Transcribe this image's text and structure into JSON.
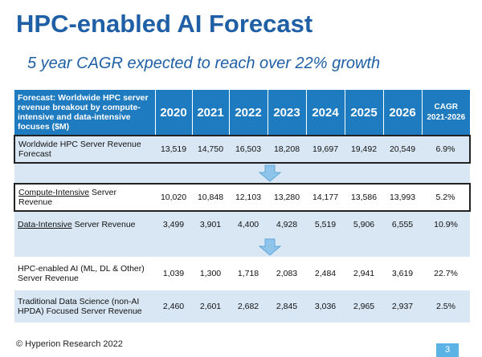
{
  "title": "HPC-enabled AI Forecast",
  "subtitle": "5 year CAGR expected to reach over 22% growth",
  "table": {
    "header_label": "Forecast: Worldwide HPC server revenue breakout by compute-intensive and data-intensive focuses ($M)",
    "years": [
      "2020",
      "2021",
      "2022",
      "2023",
      "2024",
      "2025",
      "2026"
    ],
    "cagr_label_line1": "CAGR",
    "cagr_label_line2": "2021-2026",
    "total": {
      "label": "Worldwide HPC Server Revenue Forecast",
      "values": [
        "13,519",
        "14,750",
        "16,503",
        "18,208",
        "19,697",
        "19,492",
        "20,549"
      ],
      "cagr": "6.9%"
    },
    "compute": {
      "label_underlined": "Compute-Intensive",
      "label_rest": " Server Revenue",
      "values": [
        "10,020",
        "10,848",
        "12,103",
        "13,280",
        "14,177",
        "13,586",
        "13,993"
      ],
      "cagr": "5.2%"
    },
    "data_int": {
      "label_underlined": "Data-Intensive",
      "label_rest": " Server Revenue",
      "values": [
        "3,499",
        "3,901",
        "4,400",
        "4,928",
        "5,519",
        "5,906",
        "6,555"
      ],
      "cagr": "10.9%"
    },
    "ai": {
      "label": "HPC-enabled AI (ML, DL & Other) Server Revenue",
      "values": [
        "1,039",
        "1,300",
        "1,718",
        "2,083",
        "2,484",
        "2,941",
        "3,619"
      ],
      "cagr": "22.7%"
    },
    "tds": {
      "label": "Traditional Data Science (non-AI HPDA) Focused Server Revenue",
      "values": [
        "2,460",
        "2,601",
        "2,682",
        "2,845",
        "3,036",
        "2,965",
        "2,937"
      ],
      "cagr": "2.5%"
    }
  },
  "footer": "© Hyperion Research 2022",
  "page_number": "3",
  "colors": {
    "brand_blue": "#1f5fa6",
    "header_blue": "#1f7bc0",
    "light_band": "#d9e7f4",
    "page_badge": "#5bb3e5"
  },
  "icons": [
    "down-arrow-icon"
  ]
}
